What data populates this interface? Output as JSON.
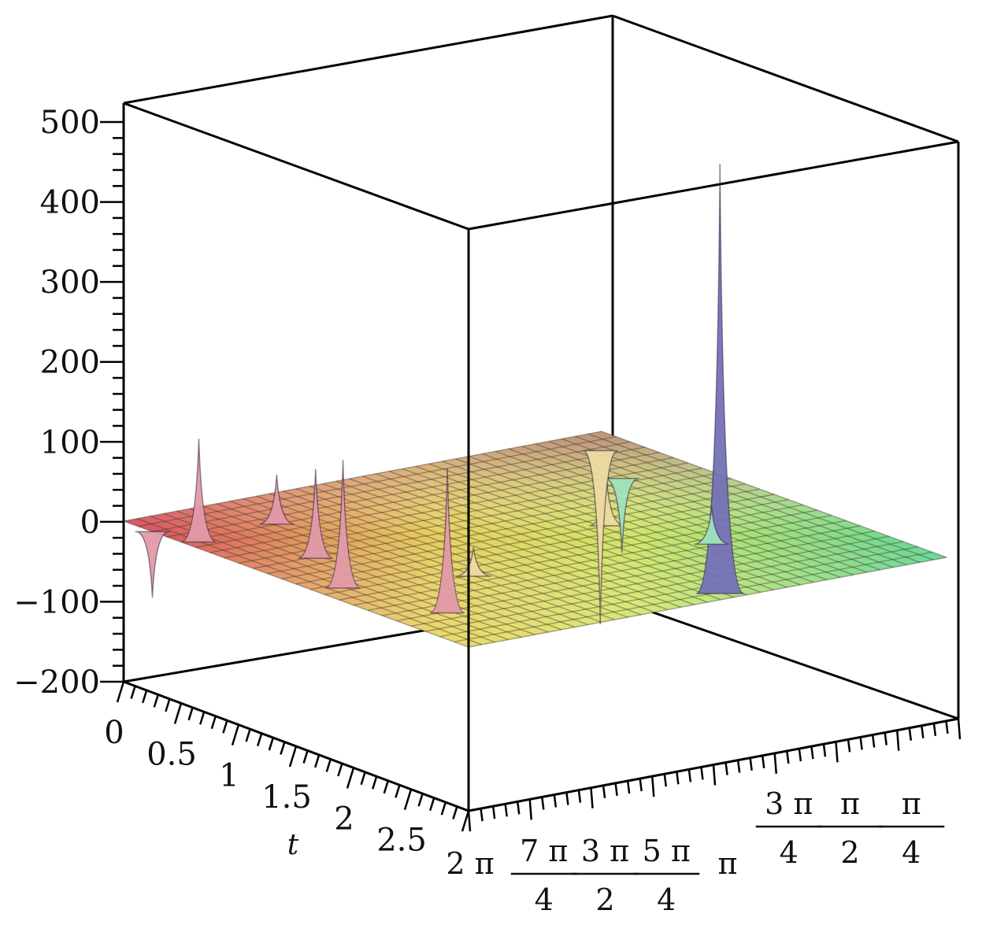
{
  "chart_data": {
    "type": "surface3d",
    "zlim": [
      -200,
      500
    ],
    "z_ticks": [
      {
        "v": 500,
        "label": "500"
      },
      {
        "v": 400,
        "label": "400"
      },
      {
        "v": 300,
        "label": "300"
      },
      {
        "v": 200,
        "label": "200"
      },
      {
        "v": 100,
        "label": "100"
      },
      {
        "v": 0,
        "label": "0"
      },
      {
        "v": -100,
        "label": "−100"
      },
      {
        "v": -200,
        "label": "−200"
      }
    ],
    "t_label": "t",
    "tlim": [
      0,
      3
    ],
    "t_ticks": [
      {
        "v": 0,
        "label": "0"
      },
      {
        "v": 0.5,
        "label": "0.5"
      },
      {
        "v": 1,
        "label": "1"
      },
      {
        "v": 1.5,
        "label": "1.5"
      },
      {
        "v": 2,
        "label": "2"
      },
      {
        "v": 2.5,
        "label": "2.5"
      }
    ],
    "xlim_over_pi": [
      0,
      2
    ],
    "x_ticks": [
      {
        "v": 2,
        "label": "2 π",
        "num": "",
        "den": ""
      },
      {
        "v": 1.75,
        "label": "",
        "num": "7 π",
        "den": "4"
      },
      {
        "v": 1.5,
        "label": "",
        "num": "3 π",
        "den": "2"
      },
      {
        "v": 1.25,
        "label": "",
        "num": "5 π",
        "den": "4"
      },
      {
        "v": 1,
        "label": "π",
        "num": "",
        "den": ""
      },
      {
        "v": 0.75,
        "label": "",
        "num": "3 π",
        "den": "4"
      },
      {
        "v": 0.5,
        "label": "",
        "num": "π",
        "den": "2"
      },
      {
        "v": 0.25,
        "label": "",
        "num": "π",
        "den": "4"
      }
    ],
    "baseline": 0,
    "peaks": [
      {
        "t": 2.9,
        "x_over_pi": 0.9,
        "z": 520
      },
      {
        "t": 0.55,
        "x_over_pi": 1.95,
        "z": 125
      },
      {
        "t": 1.15,
        "x_over_pi": 1.75,
        "z": 108
      },
      {
        "t": 1.7,
        "x_over_pi": 1.9,
        "z": 155
      },
      {
        "t": 2.4,
        "x_over_pi": 1.8,
        "z": 175
      },
      {
        "t": 0.5,
        "x_over_pi": 1.6,
        "z": 60
      },
      {
        "t": 1.9,
        "x_over_pi": 1.45,
        "z": 35
      },
      {
        "t": 2.1,
        "x_over_pi": 0.55,
        "z": 45
      },
      {
        "t": 1.5,
        "x_over_pi": 0.7,
        "z": 55
      },
      {
        "t": 0.25,
        "x_over_pi": 2.0,
        "z": -80
      },
      {
        "t": 0.8,
        "x_over_pi": 0.3,
        "z": -90
      },
      {
        "t": 0.3,
        "x_over_pi": 0.15,
        "z": -210
      }
    ],
    "colormap": [
      "#d8485c",
      "#e6e25a",
      "#6fe3a0",
      "#6f78c8"
    ],
    "grid": true
  }
}
